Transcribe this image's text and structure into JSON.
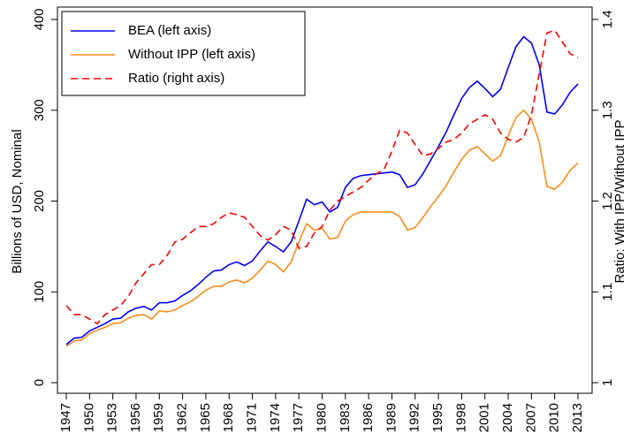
{
  "chart_data": {
    "type": "line",
    "y_label": "Billions of USD, Nominal",
    "y2_label": "Ratio: With IPP/Without IPP",
    "x": [
      1947,
      1948,
      1949,
      1950,
      1951,
      1952,
      1953,
      1954,
      1955,
      1956,
      1957,
      1958,
      1959,
      1960,
      1961,
      1962,
      1963,
      1964,
      1965,
      1966,
      1967,
      1968,
      1969,
      1970,
      1971,
      1972,
      1973,
      1974,
      1975,
      1976,
      1977,
      1978,
      1979,
      1980,
      1981,
      1982,
      1983,
      1984,
      1985,
      1986,
      1987,
      1988,
      1989,
      1990,
      1991,
      1992,
      1993,
      1994,
      1995,
      1996,
      1997,
      1998,
      1999,
      2000,
      2001,
      2002,
      2003,
      2004,
      2005,
      2006,
      2007,
      2008,
      2009,
      2010,
      2011,
      2012,
      2013
    ],
    "xlim": [
      1947,
      2013
    ],
    "xticks": [
      1947,
      1950,
      1953,
      1956,
      1959,
      1962,
      1965,
      1968,
      1971,
      1974,
      1977,
      1980,
      1983,
      1986,
      1989,
      1992,
      1995,
      1998,
      2001,
      2004,
      2007,
      2010,
      2013
    ],
    "ylim": [
      0,
      400
    ],
    "yticks": [
      0,
      100,
      200,
      300,
      400
    ],
    "y2lim": [
      1,
      1.4
    ],
    "y2ticks": [
      1,
      1.1,
      1.2,
      1.3,
      1.4
    ],
    "legend": "top-left",
    "series": [
      {
        "name": "BEA (left axis)",
        "color": "#0000ff",
        "style": "solid",
        "values": [
          42,
          49,
          50,
          57,
          61,
          65,
          70,
          71,
          78,
          82,
          84,
          80,
          88,
          88,
          90,
          96,
          101,
          108,
          116,
          123,
          124,
          130,
          133,
          129,
          134,
          145,
          155,
          150,
          144,
          155,
          178,
          202,
          196,
          199,
          188,
          193,
          215,
          225,
          228,
          229,
          230,
          231,
          232,
          229,
          215,
          218,
          230,
          245,
          260,
          276,
          295,
          313,
          325,
          332,
          324,
          315,
          323,
          347,
          370,
          381,
          374,
          350,
          298,
          296,
          306,
          320,
          329
        ]
      },
      {
        "name": "Without IPP (left axis)",
        "color": "#ff8c1a",
        "style": "solid",
        "values": [
          40,
          46,
          47,
          54,
          58,
          61,
          65,
          66,
          71,
          74,
          75,
          70,
          79,
          78,
          80,
          85,
          89,
          95,
          102,
          106,
          106,
          111,
          113,
          110,
          115,
          124,
          134,
          130,
          122,
          133,
          155,
          175,
          168,
          170,
          158,
          160,
          178,
          185,
          188,
          188,
          188,
          188,
          188,
          183,
          168,
          171,
          182,
          194,
          205,
          217,
          232,
          246,
          256,
          260,
          252,
          244,
          250,
          272,
          292,
          300,
          290,
          265,
          216,
          213,
          221,
          234,
          242
        ]
      },
      {
        "name": "Ratio (right axis)",
        "color": "#ff0000",
        "style": "dashed",
        "axis": "y2",
        "values": [
          1.085,
          1.075,
          1.075,
          1.07,
          1.065,
          1.075,
          1.08,
          1.085,
          1.095,
          1.11,
          1.12,
          1.13,
          1.13,
          1.14,
          1.155,
          1.158,
          1.165,
          1.172,
          1.172,
          1.175,
          1.182,
          1.187,
          1.185,
          1.182,
          1.172,
          1.162,
          1.157,
          1.163,
          1.172,
          1.168,
          1.148,
          1.15,
          1.165,
          1.172,
          1.19,
          1.2,
          1.205,
          1.21,
          1.215,
          1.223,
          1.23,
          1.235,
          1.255,
          1.278,
          1.275,
          1.262,
          1.25,
          1.252,
          1.258,
          1.265,
          1.268,
          1.275,
          1.285,
          1.29,
          1.295,
          1.29,
          1.275,
          1.268,
          1.265,
          1.27,
          1.295,
          1.34,
          1.385,
          1.388,
          1.375,
          1.362,
          1.358
        ]
      }
    ]
  }
}
